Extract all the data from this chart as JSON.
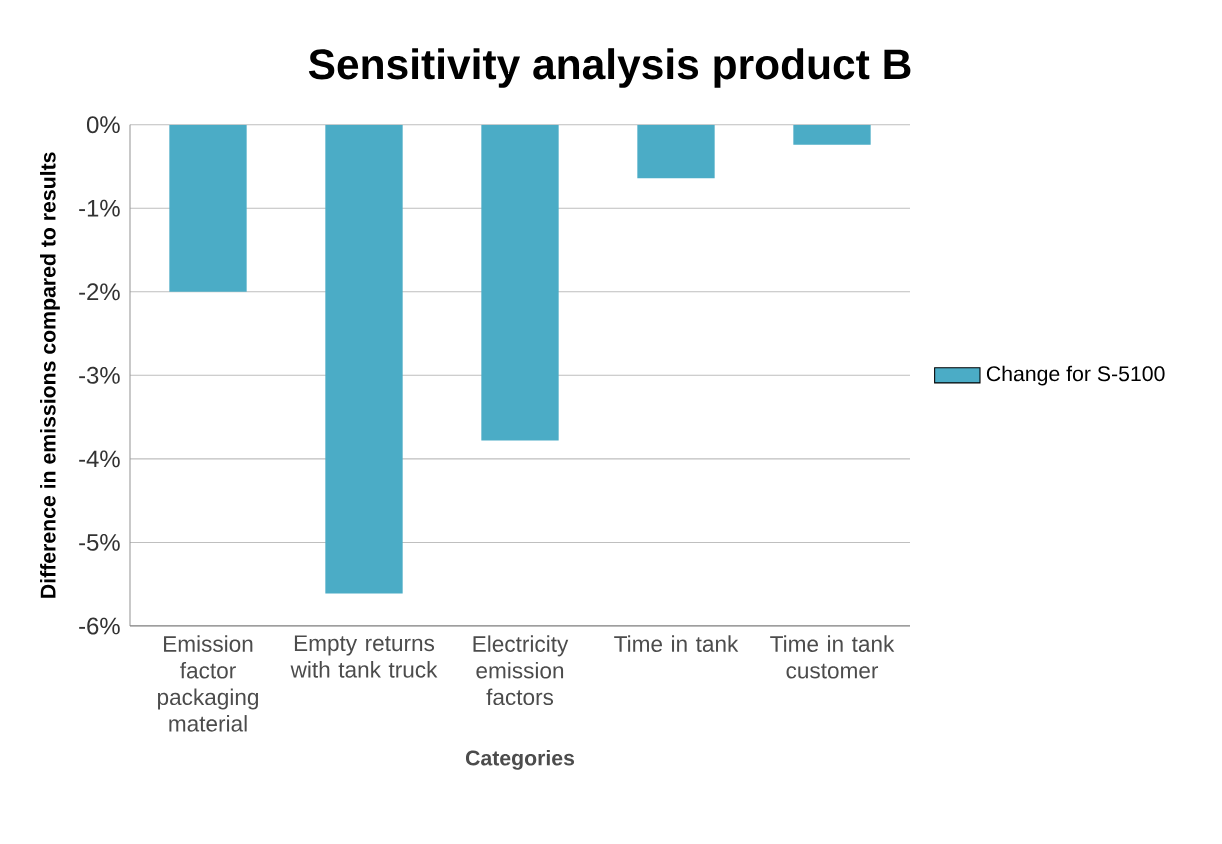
{
  "chart_data": {
    "type": "bar",
    "title": "Sensitivity analysis product B",
    "xlabel": "Categories",
    "ylabel": "Difference in emissions compared to results",
    "categories": [
      "Emission factor packaging material",
      "Empty returns with tank truck",
      "Electricity emission factors",
      "Time in tank",
      "Time in tank customer"
    ],
    "series": [
      {
        "name": "Change for S-5100",
        "color": "#4bacc6",
        "values": [
          -2.0,
          -5.61,
          -3.78,
          -0.64,
          -0.24
        ]
      }
    ],
    "ylim": [
      -6,
      0
    ],
    "yticks": [
      {
        "value": -6,
        "label": "-6%"
      },
      {
        "value": -5,
        "label": "-5%"
      },
      {
        "value": -4,
        "label": "-4%"
      },
      {
        "value": -3,
        "label": "-3%"
      },
      {
        "value": -2,
        "label": "-2%"
      },
      {
        "value": -1,
        "label": "-1%"
      },
      {
        "value": 0,
        "label": "0%"
      }
    ],
    "grid": "y",
    "legend": "right"
  }
}
